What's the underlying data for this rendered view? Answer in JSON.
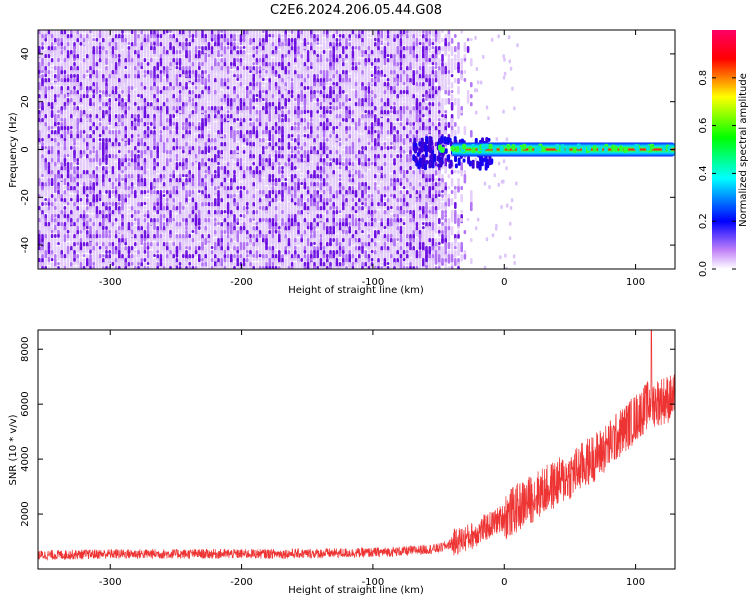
{
  "title": "C2E6.2024.206.05.44.G08",
  "colors": {
    "snr_line": "#ee3333",
    "spectrogram_low": "#e2c8f8",
    "spectrogram_mid": "#6a0ae0",
    "axis": "#000000",
    "background": "#ffffff"
  },
  "chart_data": [
    {
      "type": "heatmap",
      "title": "",
      "xlabel": "Height of straight line (km)",
      "ylabel": "Frequency (Hz)",
      "xlim": [
        -355,
        130
      ],
      "ylim": [
        -50,
        50
      ],
      "x_ticks": [
        -300,
        -200,
        -100,
        0,
        100
      ],
      "y_ticks": [
        -40,
        -20,
        0,
        20,
        40
      ],
      "colorbar": {
        "label": "Normalized spectral amplitude",
        "ticks": [
          0.0,
          0.2,
          0.4,
          0.6,
          0.8
        ],
        "tick_labels": [
          "0.0",
          "0.2",
          "0.4",
          "0.6",
          "0.8"
        ],
        "range": [
          0,
          1
        ],
        "colormap": [
          "#ffffff",
          "#a020f0",
          "#0000ff",
          "#00ffff",
          "#00ff00",
          "#ffff00",
          "#ff0000",
          "#ff0066"
        ]
      },
      "features": [
        {
          "description": "broadband noise",
          "x_range": [
            -355,
            -25
          ],
          "freq_range": [
            -50,
            50
          ],
          "amplitude": 0.15
        },
        {
          "description": "narrow carrier line",
          "x_range": [
            -55,
            130
          ],
          "freq_center": 0,
          "amplitude": 0.85
        }
      ],
      "grid": false
    },
    {
      "type": "line",
      "title": "",
      "xlabel": "Height of straight line (km)",
      "ylabel": "SNR (10 * v/v)",
      "xlim": [
        -355,
        130
      ],
      "ylim": [
        0,
        8700
      ],
      "x_ticks": [
        -300,
        -200,
        -100,
        0,
        100
      ],
      "y_ticks": [
        2000,
        4000,
        6000,
        8000
      ],
      "grid": false,
      "series": [
        {
          "x": [
            -355,
            -300,
            -250,
            -200,
            -150,
            -100,
            -75,
            -50,
            -25,
            0,
            25,
            50,
            75,
            100,
            110,
            125,
            130
          ],
          "y": [
            500,
            550,
            550,
            550,
            560,
            600,
            650,
            750,
            1200,
            1900,
            2700,
            3400,
            4300,
            5500,
            6000,
            6200,
            6200
          ]
        }
      ],
      "annotations_peak": {
        "x": 112,
        "y": 8700
      }
    }
  ]
}
